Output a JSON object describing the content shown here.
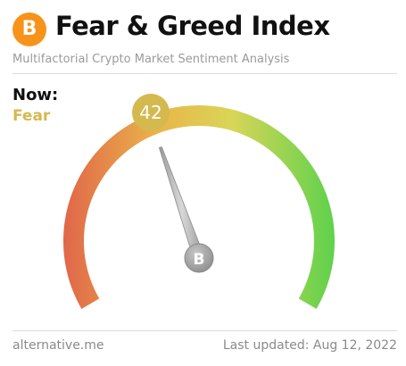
{
  "header": {
    "logo_glyph": "B",
    "title": "Fear & Greed Index",
    "subtitle": "Multifactorial Crypto Market Sentiment Analysis"
  },
  "status": {
    "now_label": "Now:",
    "sentiment": "Fear"
  },
  "gauge": {
    "value": 42,
    "value_label": "42",
    "min": 0,
    "max": 100,
    "badge_color": "#d4b94e",
    "needle_hub_glyph": "B",
    "gradient_colors": [
      "#e0664a",
      "#eab54a",
      "#d9d558",
      "#5ed24c"
    ]
  },
  "footer": {
    "source": "alternative.me",
    "last_updated": "Last updated: Aug 12, 2022"
  }
}
